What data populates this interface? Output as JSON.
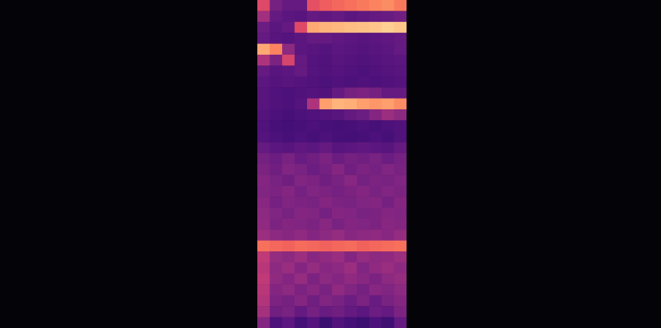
{
  "chart_data": {
    "type": "heatmap",
    "tick_labels": false,
    "zlim": [
      0,
      1
    ],
    "cells": [
      [
        0.6,
        0.34,
        0.3,
        0.3,
        0.62,
        0.66,
        0.68,
        0.7,
        0.72,
        0.74,
        0.76,
        0.72
      ],
      [
        0.45,
        0.3,
        0.28,
        0.27,
        0.3,
        0.29,
        0.3,
        0.28,
        0.29,
        0.3,
        0.31,
        0.33
      ],
      [
        0.32,
        0.28,
        0.3,
        0.6,
        0.82,
        0.84,
        0.85,
        0.86,
        0.87,
        0.88,
        0.9,
        0.88
      ],
      [
        0.3,
        0.27,
        0.26,
        0.28,
        0.3,
        0.3,
        0.29,
        0.28,
        0.27,
        0.28,
        0.29,
        0.3
      ],
      [
        0.82,
        0.74,
        0.4,
        0.28,
        0.27,
        0.26,
        0.28,
        0.27,
        0.26,
        0.27,
        0.28,
        0.3
      ],
      [
        0.48,
        0.36,
        0.58,
        0.3,
        0.26,
        0.25,
        0.27,
        0.26,
        0.25,
        0.26,
        0.27,
        0.28
      ],
      [
        0.3,
        0.27,
        0.28,
        0.3,
        0.26,
        0.25,
        0.26,
        0.25,
        0.24,
        0.25,
        0.26,
        0.27
      ],
      [
        0.28,
        0.26,
        0.27,
        0.26,
        0.25,
        0.24,
        0.25,
        0.24,
        0.25,
        0.24,
        0.25,
        0.26
      ],
      [
        0.27,
        0.25,
        0.24,
        0.25,
        0.26,
        0.25,
        0.3,
        0.34,
        0.36,
        0.34,
        0.3,
        0.3
      ],
      [
        0.27,
        0.25,
        0.24,
        0.26,
        0.48,
        0.8,
        0.84,
        0.83,
        0.8,
        0.78,
        0.8,
        0.76
      ],
      [
        0.26,
        0.24,
        0.23,
        0.24,
        0.25,
        0.26,
        0.27,
        0.3,
        0.32,
        0.38,
        0.44,
        0.4
      ],
      [
        0.25,
        0.23,
        0.22,
        0.23,
        0.24,
        0.23,
        0.22,
        0.23,
        0.24,
        0.23,
        0.24,
        0.25
      ],
      [
        0.26,
        0.24,
        0.23,
        0.24,
        0.23,
        0.24,
        0.23,
        0.22,
        0.23,
        0.24,
        0.23,
        0.25
      ],
      [
        0.3,
        0.28,
        0.27,
        0.29,
        0.28,
        0.3,
        0.27,
        0.28,
        0.29,
        0.28,
        0.27,
        0.3
      ],
      [
        0.34,
        0.32,
        0.35,
        0.31,
        0.33,
        0.36,
        0.32,
        0.34,
        0.33,
        0.35,
        0.32,
        0.34
      ],
      [
        0.36,
        0.33,
        0.37,
        0.35,
        0.32,
        0.34,
        0.38,
        0.33,
        0.36,
        0.34,
        0.37,
        0.35
      ],
      [
        0.38,
        0.35,
        0.33,
        0.37,
        0.36,
        0.33,
        0.35,
        0.39,
        0.34,
        0.36,
        0.35,
        0.37
      ],
      [
        0.37,
        0.36,
        0.38,
        0.34,
        0.37,
        0.36,
        0.34,
        0.36,
        0.38,
        0.35,
        0.37,
        0.36
      ],
      [
        0.39,
        0.34,
        0.37,
        0.36,
        0.35,
        0.38,
        0.36,
        0.35,
        0.37,
        0.38,
        0.34,
        0.38
      ],
      [
        0.4,
        0.37,
        0.35,
        0.38,
        0.37,
        0.34,
        0.38,
        0.37,
        0.35,
        0.36,
        0.38,
        0.37
      ],
      [
        0.41,
        0.36,
        0.38,
        0.37,
        0.36,
        0.39,
        0.35,
        0.38,
        0.37,
        0.36,
        0.39,
        0.38
      ],
      [
        0.44,
        0.4,
        0.39,
        0.41,
        0.38,
        0.4,
        0.42,
        0.39,
        0.4,
        0.41,
        0.39,
        0.42
      ],
      [
        0.7,
        0.68,
        0.67,
        0.69,
        0.68,
        0.67,
        0.68,
        0.69,
        0.67,
        0.68,
        0.69,
        0.7
      ],
      [
        0.52,
        0.42,
        0.4,
        0.44,
        0.39,
        0.41,
        0.43,
        0.38,
        0.42,
        0.4,
        0.41,
        0.44
      ],
      [
        0.5,
        0.4,
        0.43,
        0.38,
        0.42,
        0.39,
        0.4,
        0.44,
        0.37,
        0.41,
        0.43,
        0.4
      ],
      [
        0.52,
        0.41,
        0.38,
        0.42,
        0.36,
        0.4,
        0.38,
        0.41,
        0.39,
        0.36,
        0.4,
        0.42
      ],
      [
        0.5,
        0.38,
        0.4,
        0.36,
        0.39,
        0.35,
        0.41,
        0.37,
        0.34,
        0.39,
        0.37,
        0.4
      ],
      [
        0.49,
        0.36,
        0.34,
        0.38,
        0.33,
        0.37,
        0.35,
        0.32,
        0.36,
        0.31,
        0.35,
        0.38
      ],
      [
        0.46,
        0.33,
        0.35,
        0.3,
        0.34,
        0.31,
        0.33,
        0.3,
        0.28,
        0.32,
        0.3,
        0.36
      ],
      [
        0.38,
        0.24,
        0.28,
        0.22,
        0.26,
        0.2,
        0.25,
        0.22,
        0.2,
        0.24,
        0.21,
        0.3
      ]
    ]
  }
}
